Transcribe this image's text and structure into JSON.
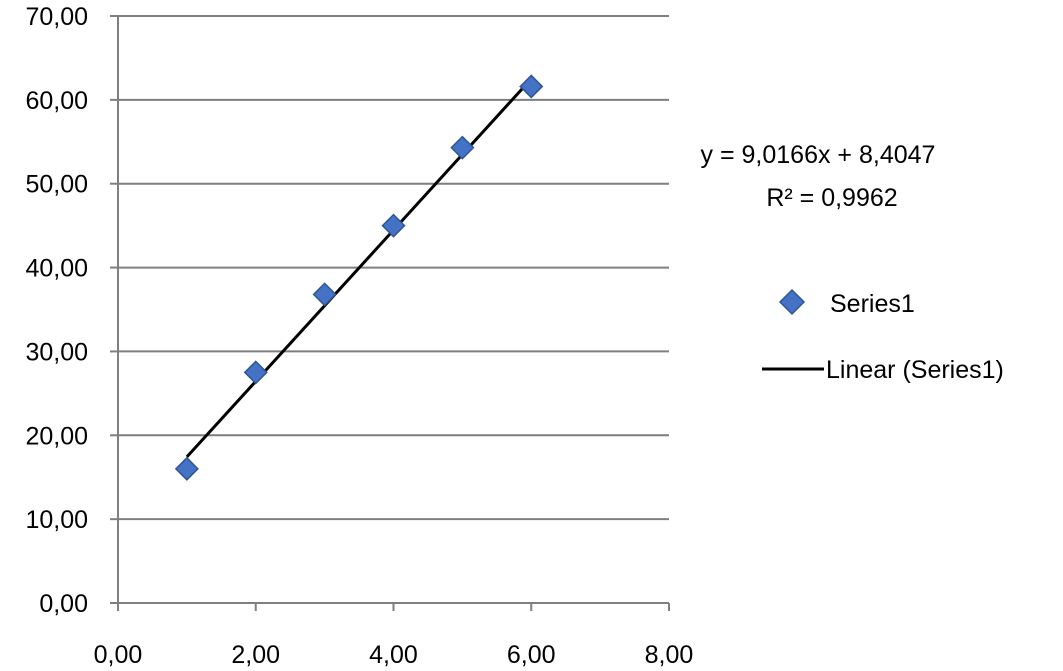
{
  "chart_data": {
    "type": "scatter",
    "x": [
      1.0,
      2.0,
      3.0,
      4.0,
      5.0,
      6.0
    ],
    "series": [
      {
        "name": "Series1",
        "values": [
          16.0,
          27.5,
          36.8,
          45.0,
          54.3,
          61.6
        ],
        "marker": "diamond",
        "color": "#4472c4"
      }
    ],
    "trendline": {
      "name": "Linear (Series1)",
      "type": "linear",
      "slope": 9.0166,
      "intercept": 8.4047,
      "x_range": [
        1.0,
        6.0
      ],
      "color": "#000000",
      "equation_text": "y = 9,0166x + 8,4047",
      "r2_text": "R² = 0,9962"
    },
    "xlim": [
      0,
      8
    ],
    "ylim": [
      0,
      70
    ],
    "x_ticks": [
      0,
      2,
      4,
      6,
      8
    ],
    "x_tick_labels": [
      "0,00",
      "2,00",
      "4,00",
      "6,00",
      "8,00"
    ],
    "y_ticks": [
      0,
      10,
      20,
      30,
      40,
      50,
      60,
      70
    ],
    "y_tick_labels": [
      "0,00",
      "10,00",
      "20,00",
      "30,00",
      "40,00",
      "50,00",
      "60,00",
      "70,00"
    ],
    "grid": "horizontal",
    "legend_position": "right"
  }
}
